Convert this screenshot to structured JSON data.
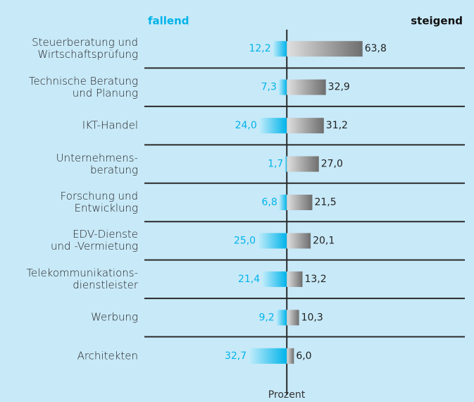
{
  "chart_data": {
    "type": "diverging-bar",
    "categories": [
      "Steuerberatung und\nWirtschaftsprüfung",
      "Technische Beratung\nund Planung",
      "IKT-Handel",
      "Unternehmens-\nberatung",
      "Forschung und\nEntwicklung",
      "EDV-Dienste\nund -Vermietung",
      "Telekommunikations-\ndienstleister",
      "Werbung",
      "Architekten"
    ],
    "series": [
      {
        "name": "fallend",
        "color": "#00b4ea",
        "values": [
          12.2,
          7.3,
          24.0,
          1.7,
          6.8,
          25.0,
          21.4,
          9.2,
          32.7
        ],
        "value_labels": [
          "12,2",
          "7,3",
          "24,0",
          "1,7",
          "6,8",
          "25,0",
          "21,4",
          "9,2",
          "32,7"
        ]
      },
      {
        "name": "steigend",
        "color": "#6e6e6e",
        "values": [
          63.8,
          32.9,
          31.2,
          27.0,
          21.5,
          20.1,
          13.2,
          10.3,
          6.0
        ],
        "value_labels": [
          "63,8",
          "32,9",
          "31,2",
          "27,0",
          "21,5",
          "20,1",
          "13,2",
          "10,3",
          "6,0"
        ]
      }
    ],
    "xlabel": "Prozent",
    "xlim": [
      -120,
      150
    ]
  }
}
